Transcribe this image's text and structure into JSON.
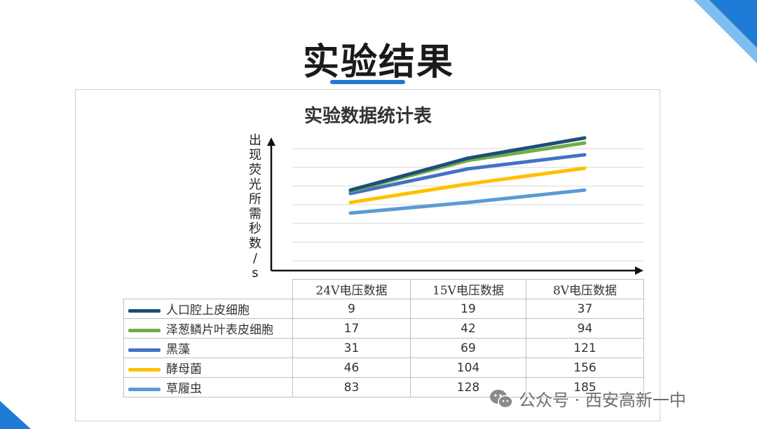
{
  "slide_title": "实验结果",
  "watermark": "公众号 · 西安高新一中",
  "colors": {
    "accent": "#1f7ad6",
    "series": [
      "#1f4e79",
      "#70ad47",
      "#4472c4",
      "#ffc000",
      "#5b9bd5"
    ]
  },
  "chart_data": {
    "type": "line",
    "title": "实验数据统计表",
    "ylabel": "出现荧光所需秒数/s",
    "xlabel": "",
    "categories": [
      "24V电压数据",
      "15V电压数据",
      "8V电压数据"
    ],
    "ylim": [
      0,
      200
    ],
    "grid": true,
    "legend": "table",
    "series": [
      {
        "name": "人口腔上皮细胞",
        "values": [
          9,
          19,
          37
        ],
        "plot_values": [
          126,
          183,
          219
        ],
        "color": "#1f4e79"
      },
      {
        "name": "泽葱鳞片叶表皮细胞",
        "values": [
          17,
          42,
          94
        ],
        "plot_values": [
          124,
          179,
          210
        ],
        "color": "#70ad47"
      },
      {
        "name": "黑藻",
        "values": [
          31,
          69,
          121
        ],
        "plot_values": [
          120,
          164,
          189
        ],
        "color": "#4472c4"
      },
      {
        "name": "酵母菌",
        "values": [
          46,
          104,
          156
        ],
        "plot_values": [
          104,
          137,
          165
        ],
        "color": "#ffc000"
      },
      {
        "name": "草履虫",
        "values": [
          83,
          128,
          185
        ],
        "plot_values": [
          85,
          104,
          126
        ],
        "color": "#5b9bd5"
      }
    ]
  }
}
